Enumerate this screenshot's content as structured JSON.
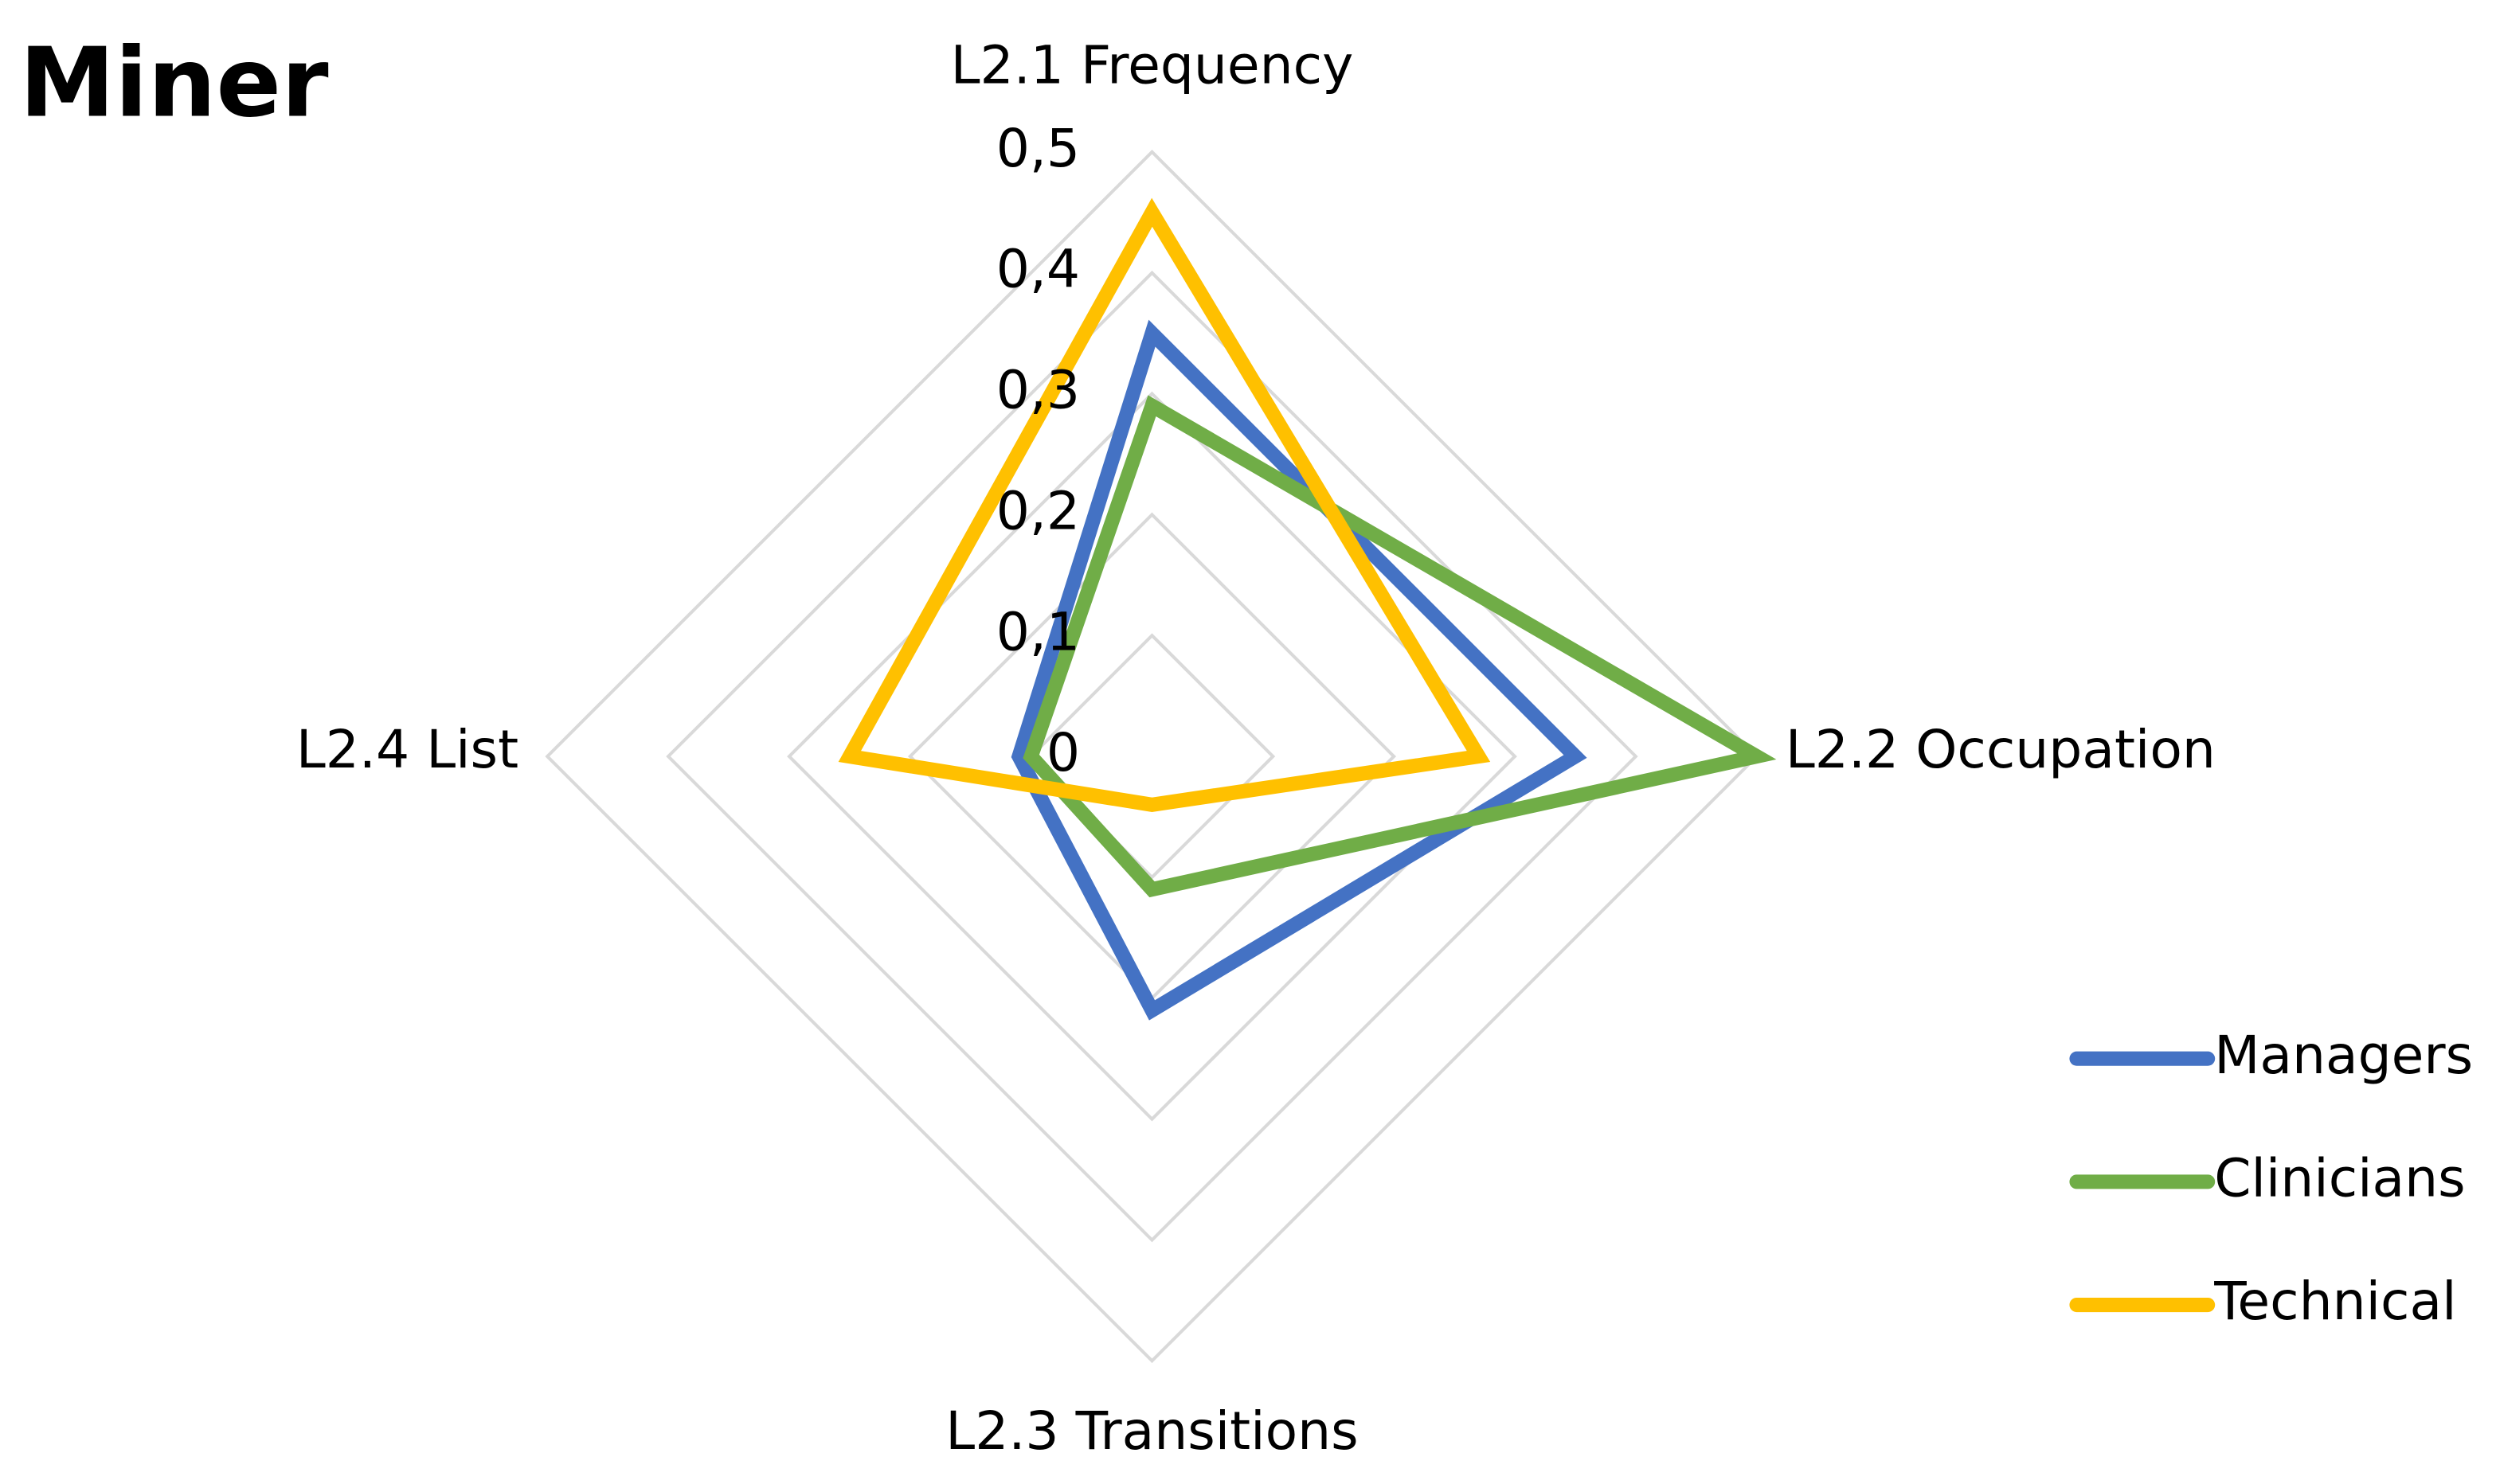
{
  "chart_data": {
    "type": "radar",
    "title": "Miner",
    "categories": [
      "L2.1 Frequency",
      "L2.2 Occupation",
      "L2.3 Transitions",
      "L2.4 List"
    ],
    "series": [
      {
        "name": "Managers",
        "color": "#4472c4",
        "values": [
          0.35,
          0.35,
          0.21,
          0.11
        ]
      },
      {
        "name": "Clinicians",
        "color": "#70ad47",
        "values": [
          0.29,
          0.5,
          0.11,
          0.1
        ]
      },
      {
        "name": "Technical",
        "color": "#ffc000",
        "values": [
          0.45,
          0.27,
          0.04,
          0.25
        ]
      }
    ],
    "ylim": [
      0,
      0.5
    ],
    "yticks": [
      0,
      {
        "value": 0.1,
        "label": "0,1"
      },
      {
        "value": 0.2,
        "label": "0,2"
      },
      {
        "value": 0.3,
        "label": "0,3"
      },
      {
        "value": 0.4,
        "label": "0,4"
      },
      {
        "value": 0.5,
        "label": "0,5"
      }
    ],
    "grid": true,
    "legend": "right"
  }
}
